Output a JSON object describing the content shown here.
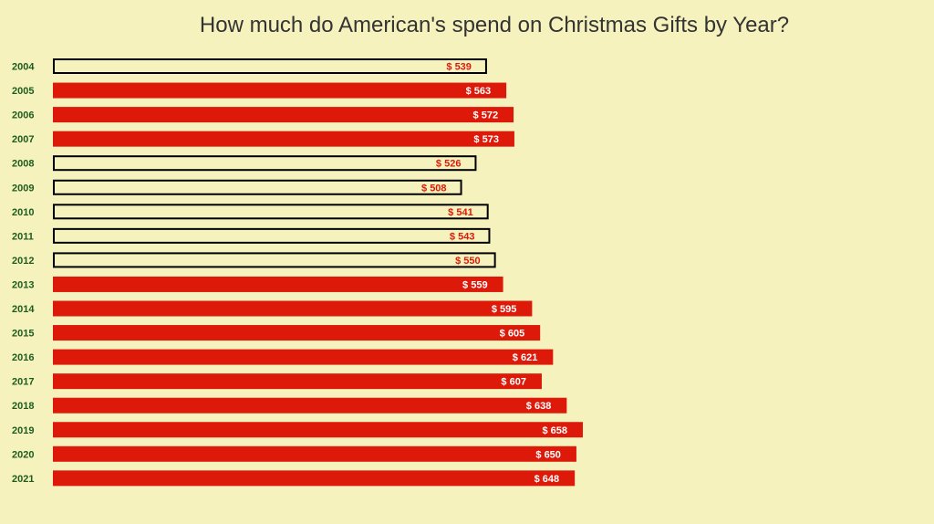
{
  "chart_data": {
    "type": "bar",
    "orientation": "horizontal",
    "title": "How much do American's spend on Christmas Gifts by Year?",
    "value_prefix": "$ ",
    "categories": [
      "2004",
      "2005",
      "2006",
      "2007",
      "2008",
      "2009",
      "2010",
      "2011",
      "2012",
      "2013",
      "2014",
      "2015",
      "2016",
      "2017",
      "2018",
      "2019",
      "2020",
      "2021"
    ],
    "values": [
      539,
      563,
      572,
      573,
      526,
      508,
      541,
      543,
      550,
      559,
      595,
      605,
      621,
      607,
      638,
      658,
      650,
      648
    ],
    "styles": [
      "outline",
      "filled",
      "filled",
      "filled",
      "outline",
      "outline",
      "outline",
      "outline",
      "outline",
      "filled",
      "filled",
      "filled",
      "filled",
      "filled",
      "filled",
      "filled",
      "filled",
      "filled"
    ],
    "xlim": [
      0,
      658
    ],
    "colors": {
      "filled_bar": "#dd1a0a",
      "outline_stroke": "#000000",
      "outline_label": "#dd1a0a",
      "filled_label": "#ffffff",
      "category_label": "#1e5c1e",
      "background": "#f6f2bd"
    }
  }
}
